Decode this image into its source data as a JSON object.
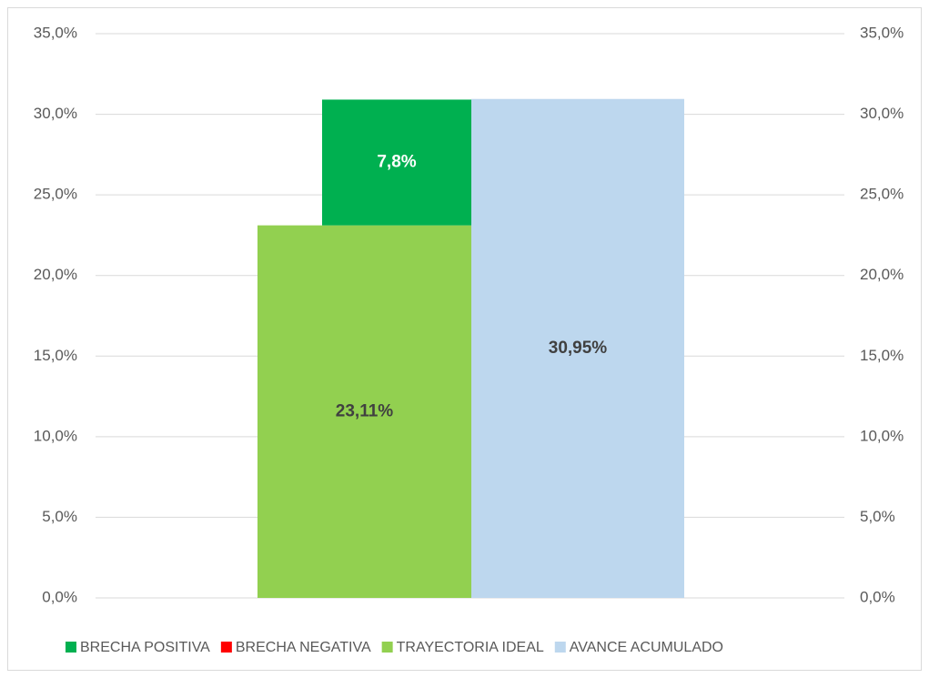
{
  "chart_data": {
    "type": "bar",
    "series": [
      {
        "name": "BRECHA POSITIVA",
        "color": "#00b050",
        "values": [
          7.8
        ],
        "value_labels": [
          "7,8%"
        ]
      },
      {
        "name": "BRECHA NEGATIVA",
        "color": "#ff0000",
        "values": [
          null
        ]
      },
      {
        "name": "TRAYECTORIA IDEAL",
        "color": "#92d050",
        "values": [
          23.11
        ],
        "value_labels": [
          "23,11%"
        ]
      },
      {
        "name": "AVANCE ACUMULADO",
        "color": "#bdd7ee",
        "values": [
          30.95
        ],
        "value_labels": [
          "30,95%"
        ],
        "axis": "y2"
      }
    ],
    "ylim": [
      0,
      35
    ],
    "yticks": [
      {
        "value": 0,
        "label": "0,0%"
      },
      {
        "value": 5,
        "label": "5,0%"
      },
      {
        "value": 10,
        "label": "10,0%"
      },
      {
        "value": 15,
        "label": "15,0%"
      },
      {
        "value": 20,
        "label": "20,0%"
      },
      {
        "value": 25,
        "label": "25,0%"
      },
      {
        "value": 30,
        "label": "30,0%"
      },
      {
        "value": 35,
        "label": "35,0%"
      }
    ],
    "y2lim": [
      0,
      35
    ],
    "y2ticks": [
      {
        "value": 0,
        "label": "0,0%"
      },
      {
        "value": 5,
        "label": "5,0%"
      },
      {
        "value": 10,
        "label": "10,0%"
      },
      {
        "value": 15,
        "label": "15,0%"
      },
      {
        "value": 20,
        "label": "20,0%"
      },
      {
        "value": 25,
        "label": "25,0%"
      },
      {
        "value": 30,
        "label": "30,0%"
      },
      {
        "value": 35,
        "label": "35,0%"
      }
    ],
    "grid": true,
    "legend": "bottom"
  }
}
